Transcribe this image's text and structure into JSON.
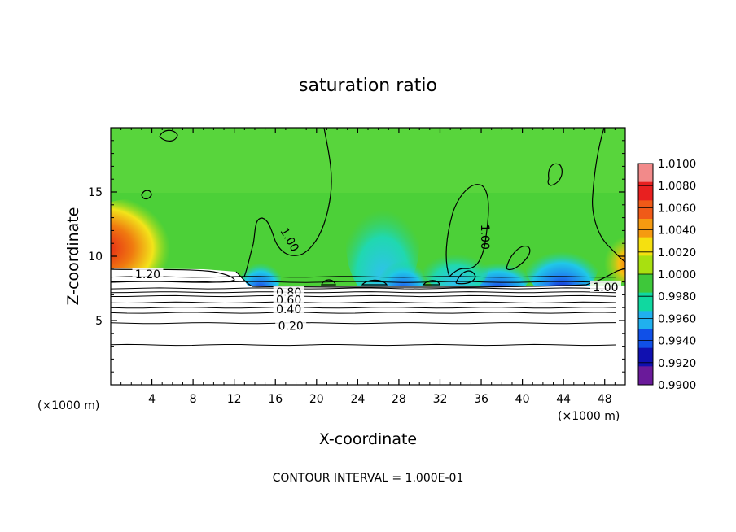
{
  "chart_data": {
    "type": "heatmap",
    "title": "saturation ratio",
    "xlabel": "X-coordinate",
    "ylabel": "Z-coordinate",
    "x_unit_left": "(×1000 m)",
    "x_unit_right": "(×1000 m)",
    "footer": "CONTOUR INTERVAL = 1.000E-01",
    "xlim": [
      0,
      50
    ],
    "ylim": [
      0,
      20
    ],
    "x_ticks": [
      4,
      8,
      12,
      16,
      20,
      24,
      28,
      32,
      36,
      40,
      44,
      48
    ],
    "y_ticks": [
      5,
      10,
      15
    ],
    "colorbar": {
      "min": 0.99,
      "max": 1.01,
      "labels": [
        "1.0100",
        "1.0080",
        "1.0060",
        "1.0040",
        "1.0020",
        "1.0000",
        "0.9980",
        "0.9960",
        "0.9940",
        "0.9920",
        "0.9900"
      ],
      "colors": [
        "#f28a8a",
        "#e82020",
        "#f05a18",
        "#f59a10",
        "#f5e010",
        "#a8e010",
        "#3ec83a",
        "#10d8a0",
        "#20b0ee",
        "#1050e8",
        "#1010b0",
        "#6a1a9a"
      ]
    },
    "contour_labels": [
      {
        "text": "1.20",
        "x": 3.6,
        "z": 8.6
      },
      {
        "text": "1.00",
        "x": 17.4,
        "z": 11.3,
        "rotate": 60
      },
      {
        "text": "1.00",
        "x": 36.4,
        "z": 11.5,
        "rotate": 90
      },
      {
        "text": "1.00",
        "x": 48.1,
        "z": 7.6
      },
      {
        "text": "0.80",
        "x": 17.3,
        "z": 7.2
      },
      {
        "text": "0.60",
        "x": 17.3,
        "z": 6.6
      },
      {
        "text": "0.40",
        "x": 17.3,
        "z": 5.9
      },
      {
        "text": "0.20",
        "x": 17.5,
        "z": 4.6
      }
    ],
    "contour_levels_z": [
      3.1,
      4.8,
      5.6,
      6.0,
      6.4,
      6.9,
      7.2,
      7.5,
      8.0,
      8.4
    ]
  }
}
